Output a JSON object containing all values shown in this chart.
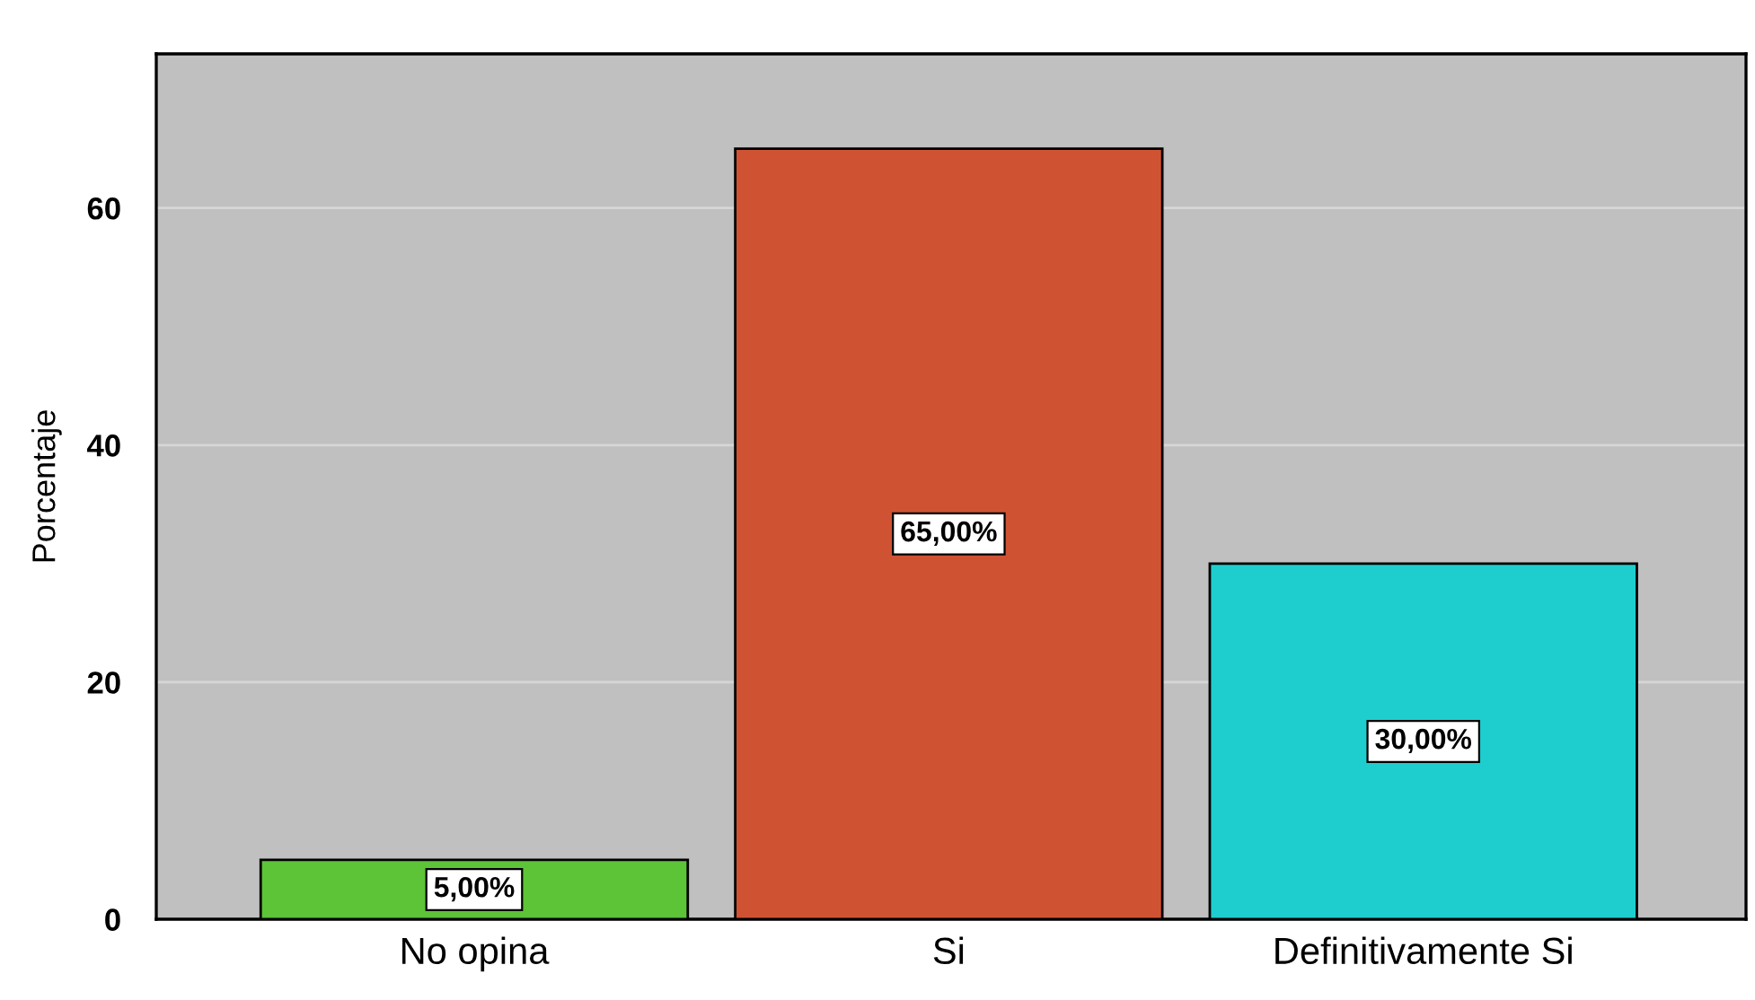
{
  "chart_data": {
    "type": "bar",
    "ylabel": "Porcentaje",
    "categories": [
      "No opina",
      "Si",
      "Definitivamente Si"
    ],
    "values": [
      5,
      65,
      30
    ],
    "colors": [
      "#5dc337",
      "#cf5333",
      "#1ecece"
    ],
    "value_labels": [
      "5,00%",
      "65,00%",
      "30,00%"
    ],
    "ylim": [
      0,
      73
    ],
    "yticks": [
      0,
      20,
      40,
      60
    ],
    "grid": "y"
  }
}
